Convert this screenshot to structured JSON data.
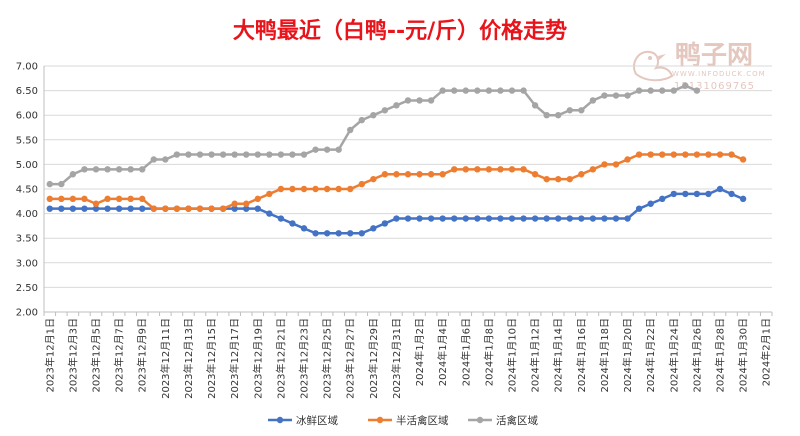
{
  "chart_data": {
    "type": "line",
    "title": "大鸭最近（白鸭--元/斤）价格走势",
    "ylim": [
      2.0,
      7.0
    ],
    "yticks": [
      "2.00",
      "2.50",
      "3.00",
      "3.50",
      "4.00",
      "4.50",
      "5.00",
      "5.50",
      "6.00",
      "6.50",
      "7.00"
    ],
    "ytick_values": [
      2.0,
      2.5,
      3.0,
      3.5,
      4.0,
      4.5,
      5.0,
      5.5,
      6.0,
      6.5,
      7.0
    ],
    "x_slots": 63,
    "xticks": [
      "2023年12月1日",
      "2023年12月3日",
      "2023年12月5日",
      "2023年12月7日",
      "2023年12月9日",
      "2023年12月11日",
      "2023年12月13日",
      "2023年12月15日",
      "2023年12月17日",
      "2023年12月19日",
      "2023年12月21日",
      "2023年12月23日",
      "2023年12月25日",
      "2023年12月27日",
      "2023年12月29日",
      "2023年12月31日",
      "2024年1月2日",
      "2024年1月4日",
      "2024年1月6日",
      "2024年1月8日",
      "2024年1月10日",
      "2024年1月12日",
      "2024年1月14日",
      "2024年1月16日",
      "2024年1月18日",
      "2024年1月20日",
      "2024年1月22日",
      "2024年1月24日",
      "2024年1月26日",
      "2024年1月28日",
      "2024年1月30日",
      "2024年2月1日"
    ],
    "grid": "horizontal",
    "legend_position": "bottom",
    "series": [
      {
        "name": "冰鲜区域",
        "color": "#4472c4",
        "values": [
          4.1,
          4.1,
          4.1,
          4.1,
          4.1,
          4.1,
          4.1,
          4.1,
          4.1,
          4.1,
          4.1,
          4.1,
          4.1,
          4.1,
          4.1,
          4.1,
          4.1,
          4.1,
          4.1,
          4.0,
          3.9,
          3.8,
          3.7,
          3.6,
          3.6,
          3.6,
          3.6,
          3.6,
          3.7,
          3.8,
          3.9,
          3.9,
          3.9,
          3.9,
          3.9,
          3.9,
          3.9,
          3.9,
          3.9,
          3.9,
          3.9,
          3.9,
          3.9,
          3.9,
          3.9,
          3.9,
          3.9,
          3.9,
          3.9,
          3.9,
          3.9,
          4.1,
          4.2,
          4.3,
          4.4,
          4.4,
          4.4,
          4.4,
          4.5,
          4.4,
          4.3
        ]
      },
      {
        "name": "半活禽区域",
        "color": "#ed7d31",
        "values": [
          4.3,
          4.3,
          4.3,
          4.3,
          4.2,
          4.3,
          4.3,
          4.3,
          4.3,
          4.1,
          4.1,
          4.1,
          4.1,
          4.1,
          4.1,
          4.1,
          4.2,
          4.2,
          4.3,
          4.4,
          4.5,
          4.5,
          4.5,
          4.5,
          4.5,
          4.5,
          4.5,
          4.6,
          4.7,
          4.8,
          4.8,
          4.8,
          4.8,
          4.8,
          4.8,
          4.9,
          4.9,
          4.9,
          4.9,
          4.9,
          4.9,
          4.9,
          4.8,
          4.7,
          4.7,
          4.7,
          4.8,
          4.9,
          5.0,
          5.0,
          5.1,
          5.2,
          5.2,
          5.2,
          5.2,
          5.2,
          5.2,
          5.2,
          5.2,
          5.2,
          5.1
        ]
      },
      {
        "name": "活禽区域",
        "color": "#a5a5a5",
        "values": [
          4.6,
          4.6,
          4.8,
          4.9,
          4.9,
          4.9,
          4.9,
          4.9,
          4.9,
          5.1,
          5.1,
          5.2,
          5.2,
          5.2,
          5.2,
          5.2,
          5.2,
          5.2,
          5.2,
          5.2,
          5.2,
          5.2,
          5.2,
          5.3,
          5.3,
          5.3,
          5.7,
          5.9,
          6.0,
          6.1,
          6.2,
          6.3,
          6.3,
          6.3,
          6.5,
          6.5,
          6.5,
          6.5,
          6.5,
          6.5,
          6.5,
          6.5,
          6.2,
          6.0,
          6.0,
          6.1,
          6.1,
          6.3,
          6.4,
          6.4,
          6.4,
          6.5,
          6.5,
          6.5,
          6.5,
          6.6,
          6.5
        ]
      }
    ]
  },
  "watermark": {
    "main": "鸭子网",
    "url": "WWW.INFODUCK.COM",
    "phone": "15131069765",
    "icon": "duck-logo-icon"
  }
}
